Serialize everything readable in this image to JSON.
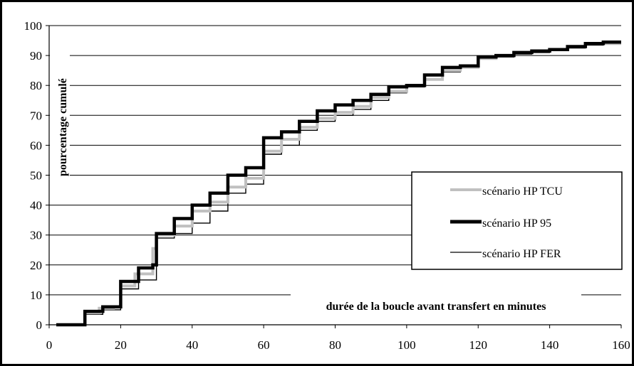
{
  "chart_data": {
    "type": "line",
    "title": "",
    "xlabel": "durée de la boucle avant transfert en minutes",
    "ylabel": "pourcentage cumulé",
    "xlim": [
      0,
      160
    ],
    "ylim": [
      0,
      100
    ],
    "x_ticks": [
      0,
      20,
      40,
      60,
      80,
      100,
      120,
      140,
      160
    ],
    "y_ticks": [
      0,
      10,
      20,
      30,
      40,
      50,
      60,
      70,
      80,
      90,
      100
    ],
    "grid": "horizontal",
    "legend_position": "right",
    "series": [
      {
        "name": "scénario HP TCU",
        "color": "#c0c0c0",
        "x": [
          2,
          10,
          10,
          14,
          14,
          18,
          18,
          20,
          20,
          24,
          24,
          29,
          29,
          30,
          30,
          35,
          35,
          40,
          40,
          45,
          45,
          50,
          50,
          55,
          55,
          60,
          60,
          65,
          65,
          70,
          70,
          75,
          75,
          80,
          80,
          85,
          85,
          90,
          90,
          95,
          95,
          100,
          100,
          105,
          105,
          110,
          110,
          115,
          115,
          120,
          120,
          125,
          125,
          130,
          130,
          135,
          135,
          140,
          140,
          145,
          145,
          150,
          150,
          155,
          155,
          160
        ],
        "y": [
          0,
          0,
          4,
          4,
          5.5,
          5.5,
          6,
          6,
          13,
          13,
          17,
          17,
          25.5,
          25.5,
          30,
          30,
          33,
          33,
          38,
          38,
          41,
          41,
          46,
          46,
          49,
          49,
          58,
          58,
          62,
          62,
          66,
          66,
          69,
          69,
          71,
          71,
          73,
          73,
          76,
          76,
          78,
          78,
          80,
          80,
          82,
          82,
          85,
          85,
          86,
          86,
          89,
          89,
          90,
          90,
          91,
          91,
          91.5,
          91.5,
          92,
          92,
          93,
          93,
          94,
          94,
          94,
          94
        ]
      },
      {
        "name": "scénario HP 95",
        "color": "#000000",
        "x": [
          2,
          10,
          10,
          15,
          15,
          20,
          20,
          25,
          25,
          29,
          29,
          30,
          30,
          35,
          35,
          40,
          40,
          45,
          45,
          50,
          50,
          55,
          55,
          60,
          60,
          65,
          65,
          70,
          70,
          75,
          75,
          80,
          80,
          85,
          85,
          90,
          90,
          95,
          95,
          100,
          100,
          105,
          105,
          110,
          110,
          115,
          115,
          120,
          120,
          125,
          125,
          130,
          130,
          135,
          135,
          140,
          140,
          145,
          145,
          150,
          150,
          155,
          155,
          160
        ],
        "y": [
          0,
          0,
          4.5,
          4.5,
          6,
          6,
          14.5,
          14.5,
          19,
          19,
          20,
          20,
          30.5,
          30.5,
          35.5,
          35.5,
          40,
          40,
          44,
          44,
          50,
          50,
          52.5,
          52.5,
          62.5,
          62.5,
          64.5,
          64.5,
          68,
          68,
          71.5,
          71.5,
          73.5,
          73.5,
          75,
          75,
          77,
          77,
          79.5,
          79.5,
          80,
          80,
          83.5,
          83.5,
          86,
          86,
          86.5,
          86.5,
          89.5,
          89.5,
          90,
          90,
          91,
          91,
          91.5,
          91.5,
          92,
          92,
          93,
          93,
          94,
          94,
          94.5,
          94.5
        ]
      },
      {
        "name": "scénario HP FER",
        "color": "#000000",
        "x": [
          2,
          10,
          10,
          15,
          15,
          20,
          20,
          25,
          25,
          30,
          30,
          35,
          35,
          40,
          40,
          45,
          45,
          50,
          50,
          55,
          55,
          60,
          60,
          65,
          65,
          70,
          70,
          75,
          75,
          80,
          80,
          85,
          85,
          90,
          90,
          95,
          95,
          100,
          100,
          105,
          105,
          110,
          110,
          115,
          115,
          120,
          120,
          125,
          125,
          130,
          130,
          135,
          135,
          140,
          140,
          145,
          145,
          150,
          150,
          155,
          155,
          160
        ],
        "y": [
          0,
          0,
          3.5,
          3.5,
          5,
          5,
          12,
          12,
          15,
          15,
          29,
          29,
          30.5,
          30.5,
          34,
          34,
          38,
          38,
          44,
          44,
          47,
          47,
          57,
          57,
          60,
          60,
          65,
          65,
          68,
          68,
          70,
          70,
          72,
          72,
          75,
          75,
          77.5,
          77.5,
          79.5,
          79.5,
          82,
          82,
          84.5,
          84.5,
          86,
          86,
          89,
          89,
          89.5,
          89.5,
          90.5,
          90.5,
          91,
          91,
          92,
          92,
          92.5,
          92.5,
          93.5,
          93.5,
          94,
          94
        ]
      }
    ]
  }
}
